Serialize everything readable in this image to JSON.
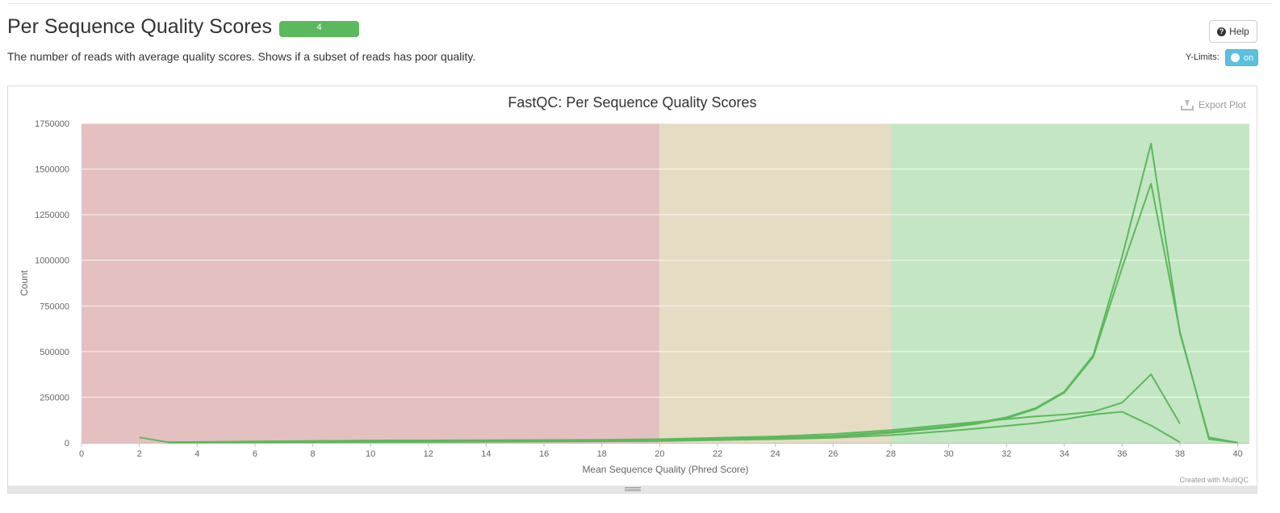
{
  "header": {
    "title": "Per Sequence Quality Scores",
    "badge": "4",
    "description": "The number of reads with average quality scores. Shows if a subset of reads has poor quality.",
    "help_label": "Help",
    "ylimits_label": "Y-Limits:",
    "ylimits_toggle": "on"
  },
  "plot": {
    "export_label": "Export Plot",
    "credit": "Created with MultiQC"
  },
  "colors": {
    "series": "#5cb85c",
    "band_fail": "#e4c0c0",
    "band_warn": "#e6dbc3",
    "band_pass": "#c4e6c4",
    "badge": "#5cb85c",
    "toggle": "#5bc0de"
  },
  "chart_data": {
    "type": "line",
    "title": "FastQC: Per Sequence Quality Scores",
    "xlabel": "Mean Sequence Quality (Phred Score)",
    "ylabel": "Count",
    "xlim": [
      0,
      40.4
    ],
    "ylim": [
      0,
      1750000
    ],
    "xticks": [
      0,
      2,
      4,
      6,
      8,
      10,
      12,
      14,
      16,
      18,
      20,
      22,
      24,
      26,
      28,
      30,
      32,
      34,
      36,
      38,
      40
    ],
    "yticks": [
      0,
      250000,
      500000,
      750000,
      1000000,
      1250000,
      1500000,
      1750000
    ],
    "bands": [
      {
        "from": 0,
        "to": 20,
        "status": "fail"
      },
      {
        "from": 20,
        "to": 28,
        "status": "warn"
      },
      {
        "from": 28,
        "to": 40.4,
        "status": "pass"
      }
    ],
    "grid": true,
    "series": [
      {
        "points": [
          [
            2,
            30000
          ],
          [
            3,
            3000
          ],
          [
            5,
            4000
          ],
          [
            8,
            7000
          ],
          [
            12,
            9000
          ],
          [
            16,
            11000
          ],
          [
            20,
            16000
          ],
          [
            24,
            28000
          ],
          [
            26,
            38000
          ],
          [
            28,
            60000
          ],
          [
            30,
            90000
          ],
          [
            31,
            110000
          ],
          [
            32,
            140000
          ],
          [
            33,
            190000
          ],
          [
            34,
            280000
          ],
          [
            35,
            480000
          ],
          [
            36,
            1020000
          ],
          [
            37,
            1640000
          ],
          [
            38,
            600000
          ],
          [
            39,
            30000
          ],
          [
            40,
            1000
          ]
        ]
      },
      {
        "points": [
          [
            3,
            2000
          ],
          [
            5,
            3000
          ],
          [
            8,
            5000
          ],
          [
            12,
            7000
          ],
          [
            16,
            9000
          ],
          [
            20,
            13000
          ],
          [
            24,
            24000
          ],
          [
            26,
            33000
          ],
          [
            28,
            55000
          ],
          [
            30,
            85000
          ],
          [
            31,
            105000
          ],
          [
            32,
            135000
          ],
          [
            33,
            185000
          ],
          [
            34,
            275000
          ],
          [
            35,
            470000
          ],
          [
            36,
            960000
          ],
          [
            37,
            1420000
          ],
          [
            38,
            610000
          ],
          [
            39,
            20000
          ],
          [
            40,
            1000
          ]
        ]
      },
      {
        "points": [
          [
            3,
            3000
          ],
          [
            6,
            8000
          ],
          [
            10,
            13000
          ],
          [
            14,
            14000
          ],
          [
            18,
            17000
          ],
          [
            20,
            20000
          ],
          [
            24,
            35000
          ],
          [
            26,
            48000
          ],
          [
            28,
            70000
          ],
          [
            30,
            100000
          ],
          [
            31,
            115000
          ],
          [
            32,
            130000
          ],
          [
            33,
            145000
          ],
          [
            34,
            155000
          ],
          [
            35,
            170000
          ],
          [
            36,
            220000
          ],
          [
            37,
            375000
          ],
          [
            38,
            105000
          ]
        ]
      },
      {
        "points": [
          [
            3,
            1000
          ],
          [
            8,
            3000
          ],
          [
            12,
            5000
          ],
          [
            16,
            7000
          ],
          [
            20,
            10000
          ],
          [
            24,
            20000
          ],
          [
            26,
            28000
          ],
          [
            28,
            42000
          ],
          [
            30,
            65000
          ],
          [
            31,
            78000
          ],
          [
            32,
            93000
          ],
          [
            33,
            108000
          ],
          [
            34,
            128000
          ],
          [
            35,
            155000
          ],
          [
            36,
            170000
          ],
          [
            37,
            95000
          ],
          [
            38,
            3000
          ]
        ]
      }
    ]
  }
}
